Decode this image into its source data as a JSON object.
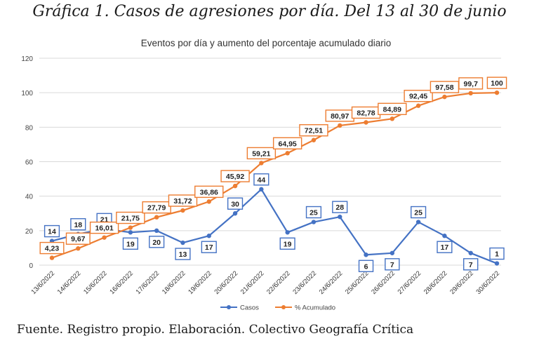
{
  "figure": {
    "title": "Gráfica 1. Casos de agresiones por día. Del 13 al 30 de junio",
    "source_label": "Fuente.",
    "source_text": "Registro propio. Elaboración. Colectivo Geografía Crítica"
  },
  "chart_data": {
    "type": "line",
    "title": "Eventos por día y aumento del porcentaje acumulado diario",
    "xlabel": "",
    "ylabel": "",
    "ylim": [
      0,
      120
    ],
    "yticks": [
      0,
      20,
      40,
      60,
      80,
      100,
      120
    ],
    "grid": true,
    "legend_position": "bottom-center",
    "categories": [
      "13/6/2022",
      "14/6/2022",
      "15/6/2022",
      "16/6/2022",
      "17/6/2022",
      "18/6/2022",
      "19/6/2022",
      "20/6/2022",
      "21/6/2022",
      "22/6/2022",
      "23/6/2022",
      "24/6/2022",
      "25/6/2022",
      "26/6/2022",
      "27/6/2022",
      "28/6/2022",
      "29/6/2022",
      "30/6/2022"
    ],
    "series": [
      {
        "name": "Casos",
        "color": "#4472C4",
        "values": [
          14,
          18,
          21,
          19,
          20,
          13,
          17,
          30,
          44,
          19,
          25,
          28,
          6,
          7,
          25,
          17,
          7,
          1
        ],
        "labels": [
          "14",
          "18",
          "21",
          "19",
          "20",
          "13",
          "17",
          "30",
          "44",
          "19",
          "25",
          "28",
          "6",
          "7",
          "25",
          "17",
          "7",
          "1"
        ]
      },
      {
        "name": "% Acumulado",
        "color": "#ED7D31",
        "values": [
          4.23,
          9.67,
          16.01,
          21.75,
          27.79,
          31.72,
          36.86,
          45.92,
          59.21,
          64.95,
          72.51,
          80.97,
          82.78,
          84.89,
          92.45,
          97.58,
          99.7,
          100
        ],
        "labels": [
          "4,23",
          "9,67",
          "16,01",
          "21,75",
          "27,79",
          "31,72",
          "36,86",
          "45,92",
          "59,21",
          "64,95",
          "72,51",
          "80,97",
          "82,78",
          "84,89",
          "92,45",
          "97,58",
          "99,7",
          "100"
        ]
      }
    ]
  }
}
